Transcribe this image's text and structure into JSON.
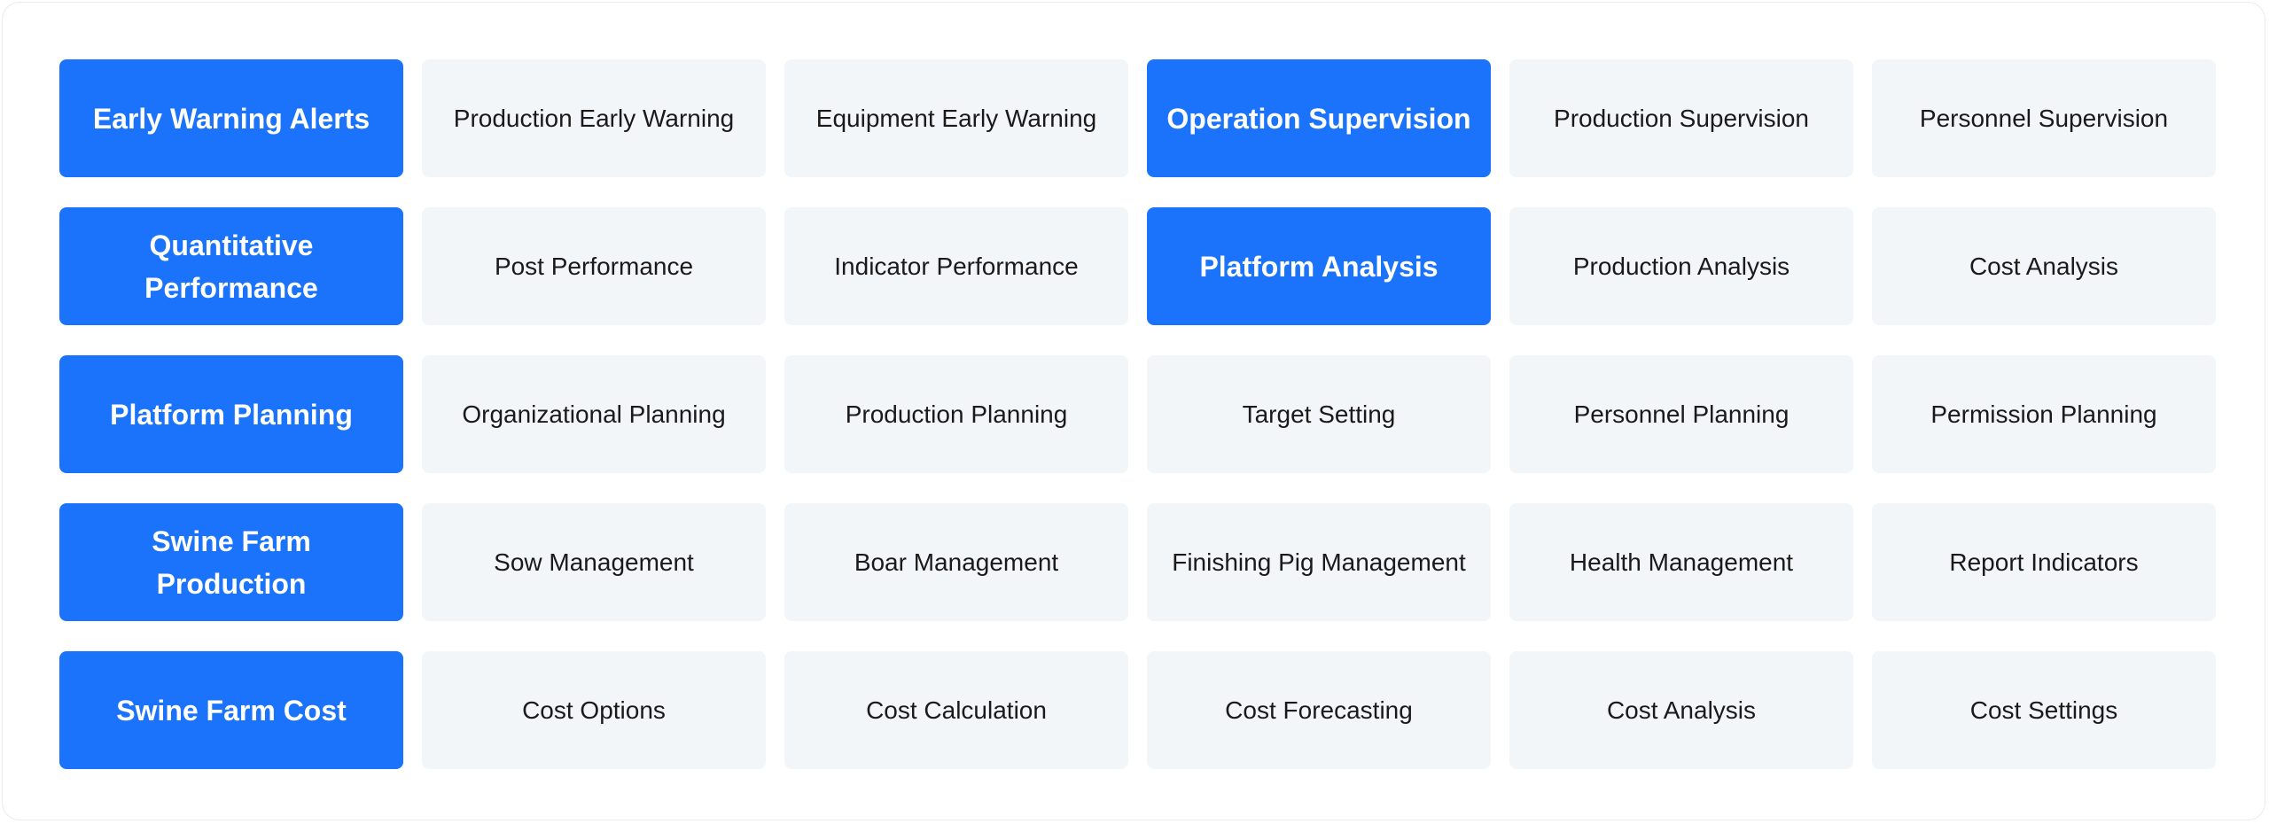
{
  "accent_color": "#1a73fa",
  "cell_color": "#f3f6f9",
  "rows": [
    {
      "cells": [
        {
          "label": "Early Warning Alerts",
          "header": true
        },
        {
          "label": "Production Early Warning",
          "header": false
        },
        {
          "label": "Equipment Early Warning",
          "header": false
        },
        {
          "label": "Operation Supervision",
          "header": true
        },
        {
          "label": "Production Supervision",
          "header": false
        },
        {
          "label": "Personnel Supervision",
          "header": false
        }
      ]
    },
    {
      "cells": [
        {
          "label": "Quantitative Performance",
          "header": true
        },
        {
          "label": "Post Performance",
          "header": false
        },
        {
          "label": "Indicator Performance",
          "header": false
        },
        {
          "label": "Platform Analysis",
          "header": true
        },
        {
          "label": "Production Analysis",
          "header": false
        },
        {
          "label": "Cost Analysis",
          "header": false
        }
      ]
    },
    {
      "cells": [
        {
          "label": "Platform Planning",
          "header": true
        },
        {
          "label": "Organizational Planning",
          "header": false
        },
        {
          "label": "Production Planning",
          "header": false
        },
        {
          "label": "Target Setting",
          "header": false
        },
        {
          "label": "Personnel Planning",
          "header": false
        },
        {
          "label": "Permission Planning",
          "header": false
        }
      ]
    },
    {
      "cells": [
        {
          "label": "Swine Farm Production",
          "header": true
        },
        {
          "label": "Sow Management",
          "header": false
        },
        {
          "label": "Boar Management",
          "header": false
        },
        {
          "label": "Finishing Pig Management",
          "header": false
        },
        {
          "label": "Health Management",
          "header": false
        },
        {
          "label": "Report Indicators",
          "header": false
        }
      ]
    },
    {
      "cells": [
        {
          "label": "Swine Farm Cost",
          "header": true
        },
        {
          "label": "Cost Options",
          "header": false
        },
        {
          "label": "Cost Calculation",
          "header": false
        },
        {
          "label": "Cost Forecasting",
          "header": false
        },
        {
          "label": "Cost Analysis",
          "header": false
        },
        {
          "label": "Cost Settings",
          "header": false
        }
      ]
    }
  ]
}
